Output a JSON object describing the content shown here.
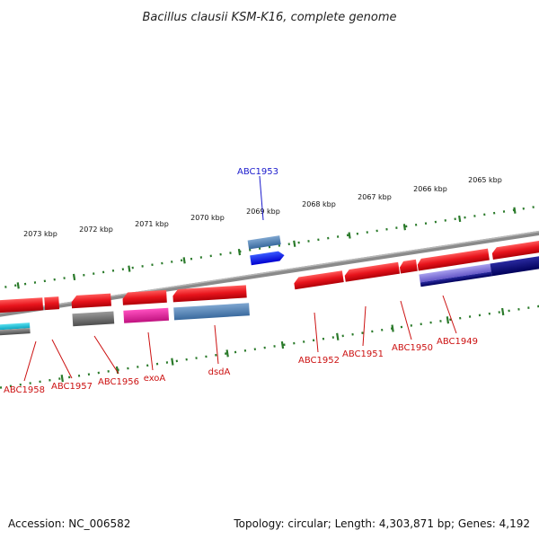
{
  "title": "Bacillus clausii KSM-K16, complete genome",
  "footer": {
    "accession": "Accession: NC_006582",
    "summary": "Topology: circular; Length: 4,303,871 bp; Genes: 4,192"
  },
  "kbp_labels": [
    "2073 kbp",
    "2072 kbp",
    "2071 kbp",
    "2070 kbp",
    "2069 kbp",
    "2068 kbp",
    "2067 kbp",
    "2066 kbp",
    "2065 kbp"
  ],
  "gene_labels": [
    "ABC1953",
    "ABC1958",
    "ABC1957",
    "ABC1956",
    "exoA",
    "dsdA",
    "ABC1952",
    "ABC1951",
    "ABC1950",
    "ABC1949"
  ],
  "colors": {
    "red_gene": "#e8141c",
    "red_label": "#cc1111",
    "blue_label": "#1a1acc",
    "backbone": "#888888",
    "tick_green": "#2a7a2a"
  }
}
